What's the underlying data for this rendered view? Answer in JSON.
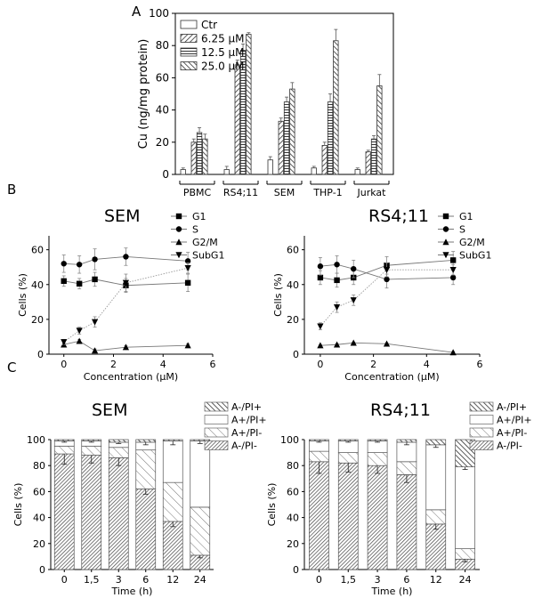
{
  "panels": {
    "A": "A",
    "B": "B",
    "C": "C"
  },
  "chart_data": [
    {
      "id": "A",
      "type": "bar",
      "ylabel": "Cu (ng/mg protein)",
      "ylim": [
        0,
        100
      ],
      "yticks": [
        0,
        20,
        40,
        60,
        80,
        100
      ],
      "categories": [
        "PBMC",
        "RS4;11",
        "SEM",
        "THP-1",
        "Jurkat"
      ],
      "legend_position": "top-left",
      "series": [
        {
          "name": "Ctr",
          "pattern": "none",
          "values": [
            3,
            3,
            9,
            4,
            3
          ],
          "errors": [
            1,
            2,
            2,
            1,
            1
          ]
        },
        {
          "name": "6.25 μM",
          "pattern": "diag",
          "values": [
            20,
            68,
            33,
            18,
            14
          ],
          "errors": [
            2,
            3,
            2,
            2,
            1
          ]
        },
        {
          "name": "12.5 μM",
          "pattern": "hline",
          "values": [
            26,
            77,
            45,
            45,
            22
          ],
          "errors": [
            3,
            4,
            3,
            5,
            2
          ]
        },
        {
          "name": "25.0 μM",
          "pattern": "anti",
          "values": [
            22,
            87,
            53,
            83,
            55
          ],
          "errors": [
            3,
            1,
            4,
            7,
            7
          ]
        }
      ]
    },
    {
      "id": "B-SEM",
      "type": "line",
      "title": "SEM",
      "xlabel": "Concentration (μM)",
      "ylabel": "Cells (%)",
      "xlim": [
        -0.6,
        6
      ],
      "ylim": [
        0,
        68
      ],
      "xticks": [
        0,
        2,
        4,
        6
      ],
      "yticks": [
        0,
        20,
        40,
        60
      ],
      "x": [
        0,
        0.625,
        1.25,
        2.5,
        5
      ],
      "legend_position": "top-right",
      "series": [
        {
          "name": "G1",
          "marker": "square",
          "values": [
            42,
            40.5,
            43,
            39.5,
            41
          ],
          "errors": [
            3,
            3,
            4,
            4,
            5
          ]
        },
        {
          "name": "S",
          "marker": "circle",
          "values": [
            52,
            51.5,
            54.5,
            56,
            53.5
          ],
          "errors": [
            5,
            5,
            6,
            5,
            5
          ]
        },
        {
          "name": "G2/M",
          "marker": "triangle-up",
          "values": [
            5.5,
            7.5,
            2,
            4,
            5
          ],
          "errors": [
            1,
            1,
            1,
            1,
            1
          ]
        },
        {
          "name": "SubG1",
          "marker": "triangle-down",
          "values": [
            7,
            13.5,
            18.5,
            41,
            49.5
          ],
          "errors": [
            1.5,
            2,
            3,
            5,
            3
          ]
        }
      ]
    },
    {
      "id": "B-RS4",
      "type": "line",
      "title": "RS4;11",
      "xlabel": "Concentration (μM)",
      "ylabel": "Cells (%)",
      "xlim": [
        -0.6,
        6
      ],
      "ylim": [
        0,
        68
      ],
      "xticks": [
        0,
        2,
        4,
        6
      ],
      "yticks": [
        0,
        20,
        40,
        60
      ],
      "x": [
        0,
        0.625,
        1.25,
        2.5,
        5
      ],
      "legend_position": "top-right",
      "series": [
        {
          "name": "G1",
          "marker": "square",
          "values": [
            44,
            42.5,
            44,
            51,
            54
          ],
          "errors": [
            4,
            4,
            4,
            5,
            5
          ]
        },
        {
          "name": "S",
          "marker": "circle",
          "values": [
            50.5,
            51.5,
            49,
            43,
            44
          ],
          "errors": [
            5,
            5,
            5,
            5,
            4
          ]
        },
        {
          "name": "G2/M",
          "marker": "triangle-up",
          "values": [
            5,
            5.5,
            6.5,
            6,
            1
          ],
          "errors": [
            0.5,
            0.5,
            0.5,
            0.5,
            0.5
          ]
        },
        {
          "name": "SubG1",
          "marker": "triangle-down",
          "values": [
            16,
            27,
            31,
            48.5,
            48.5
          ],
          "errors": [
            2,
            3,
            3,
            4,
            3
          ]
        }
      ]
    },
    {
      "id": "C-SEM",
      "type": "bar",
      "stacked": true,
      "title": "SEM",
      "xlabel": "Time (h)",
      "ylabel": "Cells (%)",
      "ylim": [
        0,
        100
      ],
      "yticks": [
        0,
        20,
        40,
        60,
        80,
        100
      ],
      "categories": [
        "0",
        "1,5",
        "3",
        "6",
        "12",
        "24"
      ],
      "legend_position": "top-right",
      "series": [
        {
          "name": "A-/PI-",
          "pattern": "diag-dense",
          "values": [
            89,
            88,
            86,
            62,
            37,
            11
          ],
          "errors": [
            8,
            6,
            6,
            4,
            4,
            2
          ]
        },
        {
          "name": "A+/PI-",
          "pattern": "diag-sparse",
          "values": [
            6,
            7,
            8,
            30,
            30,
            37
          ],
          "errors": [
            0,
            0,
            0,
            0,
            0,
            0
          ]
        },
        {
          "name": "A+/PI+",
          "pattern": "none",
          "values": [
            4,
            4,
            4,
            6,
            32,
            51
          ],
          "errors": [
            1,
            1,
            1,
            2,
            3,
            2
          ]
        },
        {
          "name": "A-/PI+",
          "pattern": "anti",
          "values": [
            1,
            1,
            2,
            2,
            1,
            1
          ],
          "errors": [
            0,
            0,
            0,
            0,
            0,
            0
          ]
        }
      ]
    },
    {
      "id": "C-RS4",
      "type": "bar",
      "stacked": true,
      "title": "RS4;11",
      "xlabel": "Time (h)",
      "ylabel": "Cells (%)",
      "ylim": [
        0,
        100
      ],
      "yticks": [
        0,
        20,
        40,
        60,
        80,
        100
      ],
      "categories": [
        "0",
        "1,5",
        "3",
        "6",
        "12",
        "24"
      ],
      "legend_position": "top-right",
      "series": [
        {
          "name": "A-/PI-",
          "pattern": "diag-dense",
          "values": [
            83,
            82,
            80,
            73,
            35,
            8
          ],
          "errors": [
            9,
            7,
            6,
            6,
            4,
            2
          ]
        },
        {
          "name": "A+/PI-",
          "pattern": "diag-sparse",
          "values": [
            8,
            8,
            10,
            10,
            11,
            8
          ],
          "errors": [
            0,
            0,
            0,
            0,
            0,
            0
          ]
        },
        {
          "name": "A+/PI+",
          "pattern": "none",
          "values": [
            8,
            9,
            9,
            15,
            50,
            63
          ],
          "errors": [
            1,
            1,
            1,
            2,
            2,
            2
          ]
        },
        {
          "name": "A-/PI+",
          "pattern": "anti",
          "values": [
            1,
            1,
            1,
            2,
            4,
            21
          ],
          "errors": [
            0,
            0,
            0,
            0,
            0,
            0
          ]
        }
      ]
    }
  ]
}
